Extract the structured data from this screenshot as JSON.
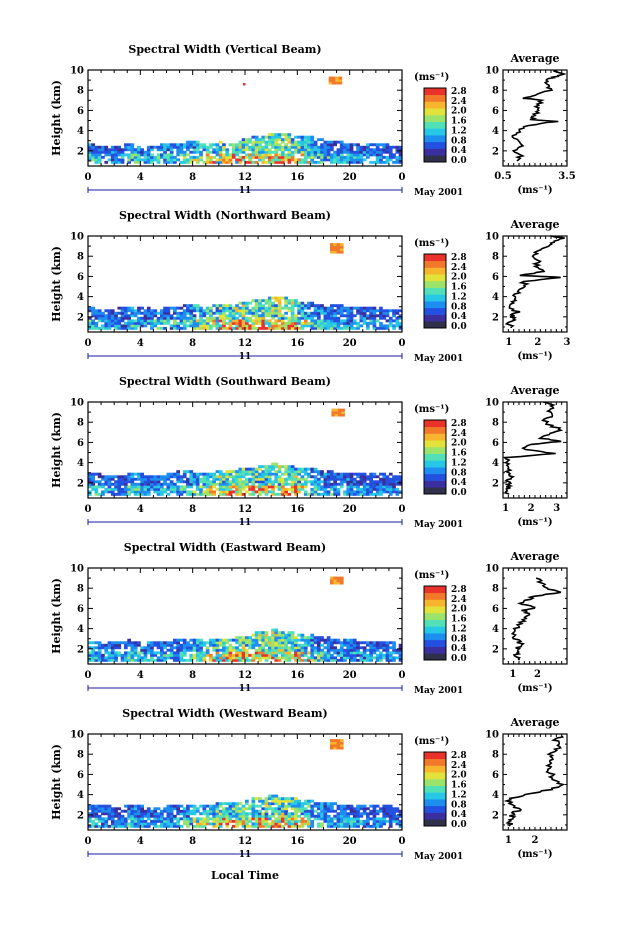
{
  "figure": {
    "shared_xlabel": "Local Time",
    "date_label": "May 2001",
    "day_label": "11",
    "colorbar_unit": "(ms⁻¹)",
    "profile_title": "Average",
    "profile_xlabel": "(ms⁻¹)",
    "ylabel": "Height (km)"
  },
  "colorscale": {
    "ticks": [
      "0.0",
      "0.4",
      "0.8",
      "1.2",
      "1.6",
      "2.0",
      "2.4",
      "2.8"
    ],
    "colors": [
      "#31304a",
      "#3b2fa0",
      "#2450e0",
      "#1d8ef0",
      "#27c7e6",
      "#52e0b6",
      "#9be36a",
      "#e3e23a",
      "#f6b52c",
      "#f2782a",
      "#e8322a"
    ]
  },
  "chart_data": [
    {
      "type": "heatmap",
      "title": "Spectral Width (Vertical Beam)",
      "beam": "vertical",
      "x_ticks": [
        "0",
        "4",
        "8",
        "12",
        "16",
        "20",
        "0"
      ],
      "y_ticks": [
        "2",
        "4",
        "6",
        "8",
        "10"
      ],
      "xlim": [
        0,
        24
      ],
      "ylim": [
        0.5,
        10
      ],
      "units": "ms-1",
      "cloud_top_km": [
        2.6,
        2.4,
        2.4,
        2.6,
        2.3,
        2.5,
        2.6,
        2.7,
        2.9,
        2.5,
        2.8,
        2.6,
        3.2,
        3.4,
        3.6,
        3.6,
        3.4,
        3.3,
        3.0,
        2.9,
        2.7,
        2.5,
        2.6,
        2.5,
        2.4
      ],
      "max_width_by_hour": [
        1.4,
        1.2,
        1.1,
        1.6,
        1.3,
        1.5,
        1.4,
        1.6,
        2.0,
        2.4,
        2.7,
        2.8,
        2.6,
        2.7,
        2.9,
        2.8,
        2.4,
        1.6,
        1.4,
        1.3,
        1.2,
        1.3,
        1.2,
        1.1,
        1.0
      ],
      "isolated_echo": {
        "time_hr": 18.9,
        "height_km": [
          8.6,
          9.2
        ],
        "width": 2.7
      },
      "profile": {
        "xlim": [
          0.5,
          3.5
        ],
        "x_ticks": [
          "0.5",
          "3.5"
        ],
        "y_ticks": [
          "2",
          "4",
          "6",
          "8",
          "10"
        ],
        "height_km": [
          1.0,
          1.5,
          2.0,
          2.5,
          3.0,
          3.5,
          4.0,
          4.5,
          4.9,
          5.1,
          5.5,
          6.0,
          6.5,
          7.0,
          7.2,
          7.5,
          8.0,
          8.5,
          9.0,
          9.3,
          9.6,
          9.9
        ],
        "avg_width": [
          1.2,
          1.3,
          1.1,
          1.4,
          1.2,
          1.0,
          1.3,
          1.6,
          3.0,
          1.8,
          2.0,
          2.2,
          2.1,
          2.3,
          1.5,
          2.0,
          2.7,
          2.6,
          2.5,
          2.9,
          3.3,
          2.8
        ]
      }
    },
    {
      "type": "heatmap",
      "title": "Spectral Width (Northward Beam)",
      "beam": "north",
      "x_ticks": [
        "0",
        "4",
        "8",
        "12",
        "16",
        "20",
        "0"
      ],
      "y_ticks": [
        "2",
        "4",
        "6",
        "8",
        "10"
      ],
      "xlim": [
        0,
        24
      ],
      "ylim": [
        0.5,
        10
      ],
      "units": "ms-1",
      "cloud_top_km": [
        2.9,
        2.6,
        2.8,
        2.8,
        2.9,
        2.7,
        2.8,
        3.0,
        3.1,
        2.9,
        3.2,
        3.1,
        3.5,
        3.7,
        3.8,
        3.8,
        3.5,
        3.3,
        3.1,
        3.1,
        2.9,
        2.8,
        2.8,
        2.7,
        2.5
      ],
      "max_width_by_hour": [
        1.3,
        1.2,
        1.1,
        1.4,
        1.2,
        1.4,
        1.3,
        1.5,
        2.1,
        2.5,
        2.8,
        2.9,
        2.6,
        2.9,
        3.0,
        2.7,
        2.3,
        1.6,
        1.4,
        1.3,
        1.2,
        1.2,
        1.1,
        1.1,
        1.0
      ],
      "isolated_echo": {
        "time_hr": 19.0,
        "height_km": [
          8.3,
          9.2
        ],
        "width": 2.7
      },
      "profile": {
        "xlim": [
          0.8,
          3.0
        ],
        "x_ticks": [
          "1",
          "2",
          "3"
        ],
        "y_ticks": [
          "2",
          "4",
          "6",
          "8",
          "10"
        ],
        "height_km": [
          0.9,
          1.3,
          1.7,
          2.1,
          2.5,
          3.0,
          3.5,
          4.0,
          4.5,
          5.0,
          5.5,
          5.9,
          6.1,
          6.5,
          7.0,
          7.5,
          8.0,
          8.5,
          9.0,
          9.4,
          9.8,
          10.0
        ],
        "avg_width": [
          1.1,
          1.0,
          1.2,
          1.1,
          1.3,
          1.0,
          1.2,
          1.1,
          1.3,
          1.6,
          1.5,
          2.9,
          1.4,
          2.2,
          1.9,
          2.1,
          1.8,
          2.0,
          2.3,
          2.6,
          2.8,
          2.4
        ]
      }
    },
    {
      "type": "heatmap",
      "title": "Spectral Width (Southward Beam)",
      "beam": "south",
      "x_ticks": [
        "0",
        "4",
        "8",
        "12",
        "16",
        "20",
        "0"
      ],
      "y_ticks": [
        "2",
        "4",
        "6",
        "8",
        "10"
      ],
      "xlim": [
        0,
        24
      ],
      "ylim": [
        0.5,
        10
      ],
      "units": "ms-1",
      "cloud_top_km": [
        2.8,
        2.8,
        2.6,
        2.8,
        2.8,
        2.6,
        2.8,
        3.1,
        3.0,
        2.9,
        3.1,
        3.2,
        3.4,
        3.6,
        3.8,
        3.7,
        3.5,
        3.3,
        3.2,
        3.0,
        2.9,
        2.8,
        2.8,
        2.8,
        2.6
      ],
      "max_width_by_hour": [
        1.3,
        1.2,
        1.0,
        1.5,
        1.2,
        1.3,
        1.3,
        1.5,
        2.0,
        2.4,
        2.8,
        2.9,
        2.7,
        2.8,
        2.9,
        2.8,
        2.2,
        1.5,
        1.3,
        1.3,
        1.2,
        1.2,
        1.1,
        1.0,
        1.0
      ],
      "isolated_echo": {
        "time_hr": 19.1,
        "height_km": [
          8.6,
          9.3
        ],
        "width": 2.7
      },
      "profile": {
        "xlim": [
          0.9,
          3.4
        ],
        "x_ticks": [
          "1",
          "2",
          "3"
        ],
        "y_ticks": [
          "2",
          "4",
          "6",
          "8",
          "10"
        ],
        "height_km": [
          0.9,
          1.3,
          1.7,
          2.2,
          2.6,
          3.0,
          3.5,
          4.0,
          4.5,
          4.9,
          5.3,
          5.8,
          6.1,
          6.4,
          6.9,
          7.3,
          7.8,
          8.3,
          8.8,
          9.2,
          9.6,
          10.0
        ],
        "avg_width": [
          1.1,
          1.0,
          1.2,
          1.1,
          1.3,
          1.0,
          1.2,
          1.1,
          1.0,
          2.9,
          1.7,
          2.0,
          3.1,
          2.4,
          2.8,
          3.2,
          2.6,
          2.5,
          2.9,
          2.7,
          2.8,
          2.6
        ]
      }
    },
    {
      "type": "heatmap",
      "title": "Spectral Width (Eastward Beam)",
      "beam": "east",
      "x_ticks": [
        "0",
        "4",
        "8",
        "12",
        "16",
        "20",
        "0"
      ],
      "y_ticks": [
        "2",
        "4",
        "6",
        "8",
        "10"
      ],
      "xlim": [
        0,
        24
      ],
      "ylim": [
        0.5,
        10
      ],
      "units": "ms-1",
      "cloud_top_km": [
        2.7,
        2.5,
        2.6,
        2.8,
        2.6,
        2.6,
        2.7,
        3.0,
        2.9,
        2.7,
        3.0,
        3.0,
        3.3,
        3.6,
        3.8,
        3.7,
        3.4,
        3.3,
        3.1,
        2.9,
        2.8,
        2.7,
        2.6,
        2.6,
        2.3
      ],
      "max_width_by_hour": [
        1.4,
        1.2,
        1.1,
        1.5,
        1.3,
        1.4,
        1.3,
        1.5,
        2.1,
        2.4,
        2.8,
        2.9,
        2.6,
        2.8,
        2.9,
        2.7,
        2.3,
        1.6,
        1.3,
        1.3,
        1.2,
        1.2,
        1.1,
        1.0,
        1.0
      ],
      "isolated_echo": {
        "time_hr": 19.0,
        "height_km": [
          8.4,
          9.0
        ],
        "width": 2.7
      },
      "profile": {
        "xlim": [
          0.6,
          3.2
        ],
        "x_ticks": [
          "1",
          "2"
        ],
        "y_ticks": [
          "2",
          "4",
          "6",
          "8",
          "10"
        ],
        "height_km": [
          0.9,
          1.3,
          1.7,
          2.1,
          2.5,
          3.0,
          3.5,
          4.0,
          4.5,
          5.0,
          5.5,
          5.8,
          6.1,
          6.4,
          6.8,
          7.2,
          7.6,
          8.0,
          8.5,
          9.0
        ],
        "avg_width": [
          1.2,
          1.1,
          1.3,
          1.2,
          1.3,
          1.1,
          1.0,
          1.1,
          1.3,
          1.5,
          1.7,
          1.4,
          2.0,
          1.3,
          1.6,
          1.8,
          3.0,
          2.4,
          2.2,
          2.0
        ]
      }
    },
    {
      "type": "heatmap",
      "title": "Spectral Width (Westward Beam)",
      "beam": "west",
      "x_ticks": [
        "0",
        "4",
        "8",
        "12",
        "16",
        "20",
        "0"
      ],
      "y_ticks": [
        "2",
        "4",
        "6",
        "8",
        "10"
      ],
      "xlim": [
        0,
        24
      ],
      "ylim": [
        0.5,
        10
      ],
      "units": "ms-1",
      "cloud_top_km": [
        2.9,
        2.9,
        2.7,
        2.8,
        2.8,
        2.6,
        2.8,
        3.0,
        3.0,
        2.9,
        3.1,
        3.1,
        3.4,
        3.7,
        3.8,
        3.7,
        3.5,
        3.3,
        3.1,
        3.0,
        2.9,
        2.8,
        2.8,
        2.8,
        2.6
      ],
      "max_width_by_hour": [
        1.3,
        1.2,
        1.0,
        1.4,
        1.2,
        1.3,
        1.3,
        1.5,
        2.0,
        2.5,
        2.8,
        2.9,
        2.7,
        2.8,
        3.0,
        2.7,
        2.2,
        1.6,
        1.3,
        1.3,
        1.2,
        1.2,
        1.1,
        1.0,
        1.0
      ],
      "isolated_echo": {
        "time_hr": 19.0,
        "height_km": [
          8.5,
          9.3
        ],
        "width": 2.7
      },
      "profile": {
        "xlim": [
          0.8,
          3.2
        ],
        "x_ticks": [
          "1",
          "2"
        ],
        "y_ticks": [
          "2",
          "4",
          "6",
          "8",
          "10"
        ],
        "height_km": [
          0.9,
          1.3,
          1.7,
          2.1,
          2.5,
          3.0,
          3.5,
          4.0,
          4.5,
          5.0,
          5.5,
          6.0,
          6.5,
          7.0,
          7.5,
          8.0,
          8.5,
          9.0,
          9.4,
          9.8
        ],
        "avg_width": [
          1.1,
          1.0,
          1.2,
          1.1,
          1.4,
          1.1,
          1.0,
          1.6,
          2.6,
          3.0,
          2.7,
          2.6,
          2.5,
          2.6,
          2.7,
          2.6,
          2.8,
          3.0,
          2.7,
          3.1
        ]
      }
    }
  ]
}
